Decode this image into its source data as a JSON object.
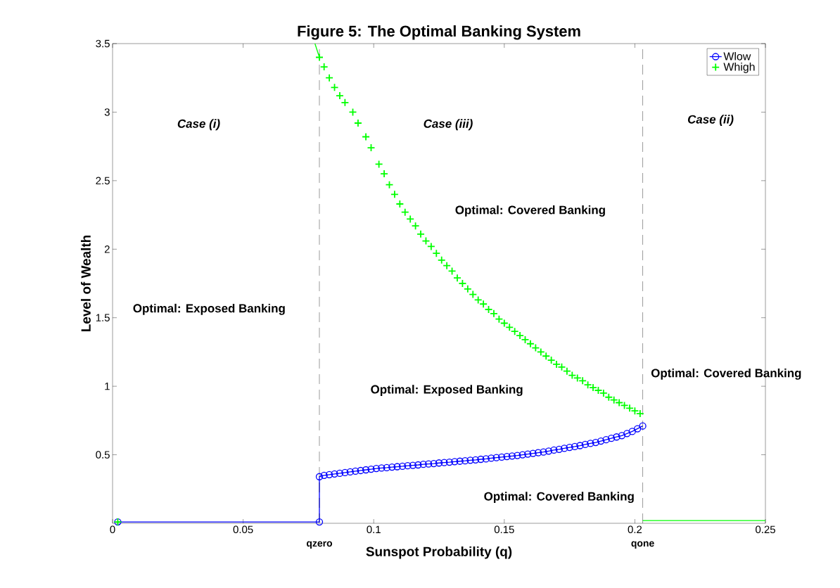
{
  "chart_data": {
    "type": "line",
    "title": "Figure 5: The Optimal Banking System",
    "xlabel": "Sunspot Probability  (q)",
    "ylabel": "Level of Wealth",
    "xlim": [
      0,
      0.25
    ],
    "ylim": [
      0,
      3.5
    ],
    "xticks": [
      0,
      0.05,
      0.1,
      0.15,
      0.2,
      0.25
    ],
    "yticks": [
      0.5,
      1,
      1.5,
      2,
      2.5,
      3,
      3.5
    ],
    "grid": false,
    "legend": "top right",
    "series": [
      {
        "name": "Wlow",
        "marker": "circle",
        "color": "#0000ff",
        "x": [
          0.002,
          0.0792,
          0.0792,
          0.081,
          0.083,
          0.085,
          0.087,
          0.089,
          0.091,
          0.093,
          0.095,
          0.097,
          0.099,
          0.101,
          0.103,
          0.105,
          0.107,
          0.109,
          0.111,
          0.113,
          0.115,
          0.117,
          0.119,
          0.121,
          0.123,
          0.125,
          0.127,
          0.129,
          0.131,
          0.133,
          0.135,
          0.137,
          0.139,
          0.141,
          0.143,
          0.145,
          0.147,
          0.149,
          0.151,
          0.153,
          0.155,
          0.157,
          0.159,
          0.161,
          0.163,
          0.165,
          0.167,
          0.169,
          0.171,
          0.173,
          0.175,
          0.177,
          0.179,
          0.181,
          0.183,
          0.185,
          0.187,
          0.189,
          0.191,
          0.193,
          0.195,
          0.197,
          0.199,
          0.201,
          0.203
        ],
        "values": [
          0.01,
          0.01,
          0.34,
          0.35,
          0.355,
          0.36,
          0.365,
          0.37,
          0.375,
          0.38,
          0.385,
          0.39,
          0.395,
          0.4,
          0.403,
          0.406,
          0.41,
          0.413,
          0.416,
          0.42,
          0.423,
          0.426,
          0.43,
          0.433,
          0.436,
          0.44,
          0.443,
          0.446,
          0.45,
          0.453,
          0.456,
          0.46,
          0.463,
          0.467,
          0.47,
          0.475,
          0.479,
          0.483,
          0.487,
          0.491,
          0.495,
          0.5,
          0.505,
          0.51,
          0.515,
          0.52,
          0.527,
          0.534,
          0.54,
          0.547,
          0.554,
          0.56,
          0.567,
          0.575,
          0.583,
          0.59,
          0.6,
          0.61,
          0.62,
          0.63,
          0.64,
          0.655,
          0.67,
          0.69,
          0.71
        ]
      },
      {
        "name": "Whigh",
        "type": "scatter",
        "marker": "cross",
        "color": "#00ff00",
        "x": [
          0.002,
          0.0792,
          0.081,
          0.083,
          0.085,
          0.087,
          0.089,
          0.092,
          0.094,
          0.097,
          0.099,
          0.102,
          0.104,
          0.106,
          0.108,
          0.11,
          0.112,
          0.114,
          0.116,
          0.118,
          0.12,
          0.122,
          0.124,
          0.126,
          0.128,
          0.13,
          0.132,
          0.134,
          0.136,
          0.138,
          0.14,
          0.142,
          0.144,
          0.146,
          0.148,
          0.15,
          0.152,
          0.154,
          0.156,
          0.158,
          0.16,
          0.162,
          0.164,
          0.166,
          0.168,
          0.17,
          0.172,
          0.174,
          0.176,
          0.178,
          0.18,
          0.182,
          0.184,
          0.186,
          0.188,
          0.19,
          0.192,
          0.194,
          0.196,
          0.198,
          0.2,
          0.202
        ],
        "values": [
          0.01,
          3.4,
          3.33,
          3.25,
          3.18,
          3.12,
          3.07,
          3.0,
          2.92,
          2.82,
          2.74,
          2.62,
          2.55,
          2.47,
          2.4,
          2.33,
          2.27,
          2.22,
          2.17,
          2.11,
          2.06,
          2.02,
          1.97,
          1.92,
          1.88,
          1.84,
          1.79,
          1.75,
          1.71,
          1.67,
          1.63,
          1.6,
          1.56,
          1.53,
          1.49,
          1.46,
          1.43,
          1.4,
          1.37,
          1.34,
          1.31,
          1.28,
          1.25,
          1.22,
          1.19,
          1.16,
          1.14,
          1.11,
          1.08,
          1.06,
          1.04,
          1.01,
          0.99,
          0.97,
          0.95,
          0.92,
          0.9,
          0.88,
          0.86,
          0.84,
          0.82,
          0.8
        ]
      },
      {
        "marker": "none",
        "color": "#00ff00",
        "x": [
          0.203,
          0.25
        ],
        "values": [
          0.02,
          0.02
        ]
      },
      {
        "marker": "none",
        "color": "#00ff00",
        "x": [
          0.0775,
          0.0792
        ],
        "values": [
          3.5,
          3.4
        ]
      }
    ],
    "ref_lines": [
      {
        "axis": "x",
        "value": 0.0792,
        "label": "qzero",
        "line_style": "dashed",
        "color": "#000000"
      },
      {
        "axis": "x",
        "value": 0.203,
        "label": "qone",
        "line_style": "dashed",
        "color": "#000000"
      }
    ],
    "annotations": [
      "*Case (i)*",
      "*Case (iii)*",
      "*Case (ii)*",
      "Optimal: Exposed Banking",
      "Optimal: Covered Banking",
      "Optimal: Exposed Banking",
      "Optimal: Covered Banking",
      "Optimal: Covered Banking"
    ]
  }
}
